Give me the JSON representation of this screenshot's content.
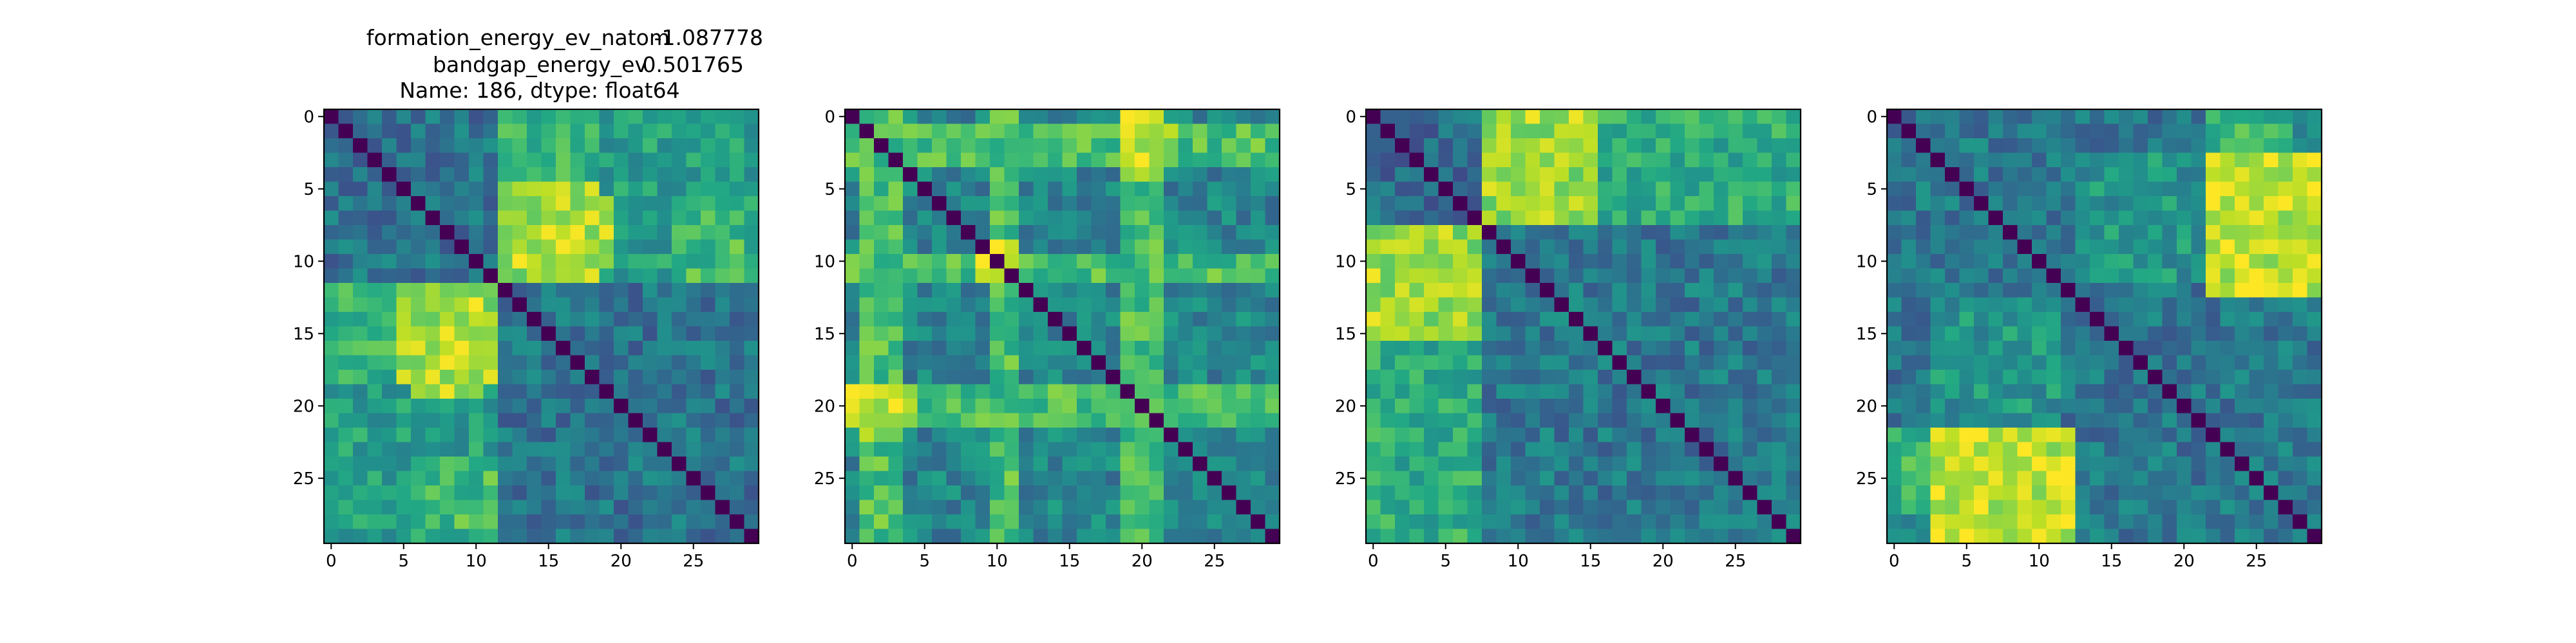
{
  "chart_data": {
    "type": "heatmap",
    "title_lines": [
      [
        "formation_energy_ev_natom",
        "-1.087778"
      ],
      [
        "bandgap_energy_ev",
        "0.501765"
      ],
      [
        "Name: 186, dtype: float64"
      ]
    ],
    "grid_size": 30,
    "ticks": [
      0,
      5,
      10,
      15,
      20,
      25
    ],
    "colormap": "viridis",
    "value_range": [
      0,
      1
    ],
    "grid": false,
    "panels": [
      {
        "panel": 1,
        "blocks": [
          [
            0,
            11
          ],
          [
            12,
            29
          ]
        ],
        "block_levels": [
          [
            0.38,
            0.56
          ],
          [
            0.56,
            0.38
          ]
        ],
        "hotspots": [
          {
            "rows": [
              6,
              10
            ],
            "cols": [
              12,
              19
            ],
            "level": 0.88
          },
          {
            "rows": [
              12,
              18
            ],
            "cols": [
              5,
              11
            ],
            "level": 0.86
          },
          {
            "rows": [
              6,
              11
            ],
            "cols": [
              24,
              28
            ],
            "level": 0.68
          },
          {
            "rows": [
              0,
              4
            ],
            "cols": [
              12,
              18
            ],
            "level": 0.64
          }
        ]
      },
      {
        "panel": 2,
        "bright_rows": [
          1,
          2,
          3,
          10,
          11,
          20,
          21
        ],
        "bright_cols": [
          1,
          2,
          3,
          10,
          11,
          19,
          20,
          21
        ],
        "base_level": 0.45,
        "hotspots": [
          {
            "rows": [
              1,
              3
            ],
            "cols": [
              19,
              22
            ],
            "level": 0.9
          },
          {
            "rows": [
              19,
              21
            ],
            "cols": [
              0,
              4
            ],
            "level": 0.88
          },
          {
            "rows": [
              10,
              11
            ],
            "cols": [
              9,
              11
            ],
            "level": 0.95
          }
        ]
      },
      {
        "panel": 3,
        "blocks": [
          [
            0,
            7
          ],
          [
            8,
            29
          ]
        ],
        "block_levels": [
          [
            0.35,
            0.62
          ],
          [
            0.62,
            0.4
          ]
        ],
        "hotspots": [
          {
            "rows": [
              0,
              7
            ],
            "cols": [
              8,
              15
            ],
            "level": 0.86
          },
          {
            "rows": [
              8,
              15
            ],
            "cols": [
              0,
              7
            ],
            "level": 0.86
          },
          {
            "rows": [
              0,
              2
            ],
            "cols": [
              23,
              27
            ],
            "level": 0.6
          }
        ]
      },
      {
        "panel": 4,
        "blocks": [
          [
            0,
            29
          ]
        ],
        "block_levels": [
          [
            0.4
          ]
        ],
        "hotspots": [
          {
            "rows": [
              5,
              12
            ],
            "cols": [
              22,
              29
            ],
            "level": 0.9
          },
          {
            "rows": [
              22,
              29
            ],
            "cols": [
              3,
              11
            ],
            "level": 0.92
          },
          {
            "rows": [
              0,
              3
            ],
            "cols": [
              22,
              27
            ],
            "level": 0.66
          },
          {
            "rows": [
              13,
              21
            ],
            "cols": [
              3,
              11
            ],
            "level": 0.52
          }
        ]
      }
    ]
  }
}
